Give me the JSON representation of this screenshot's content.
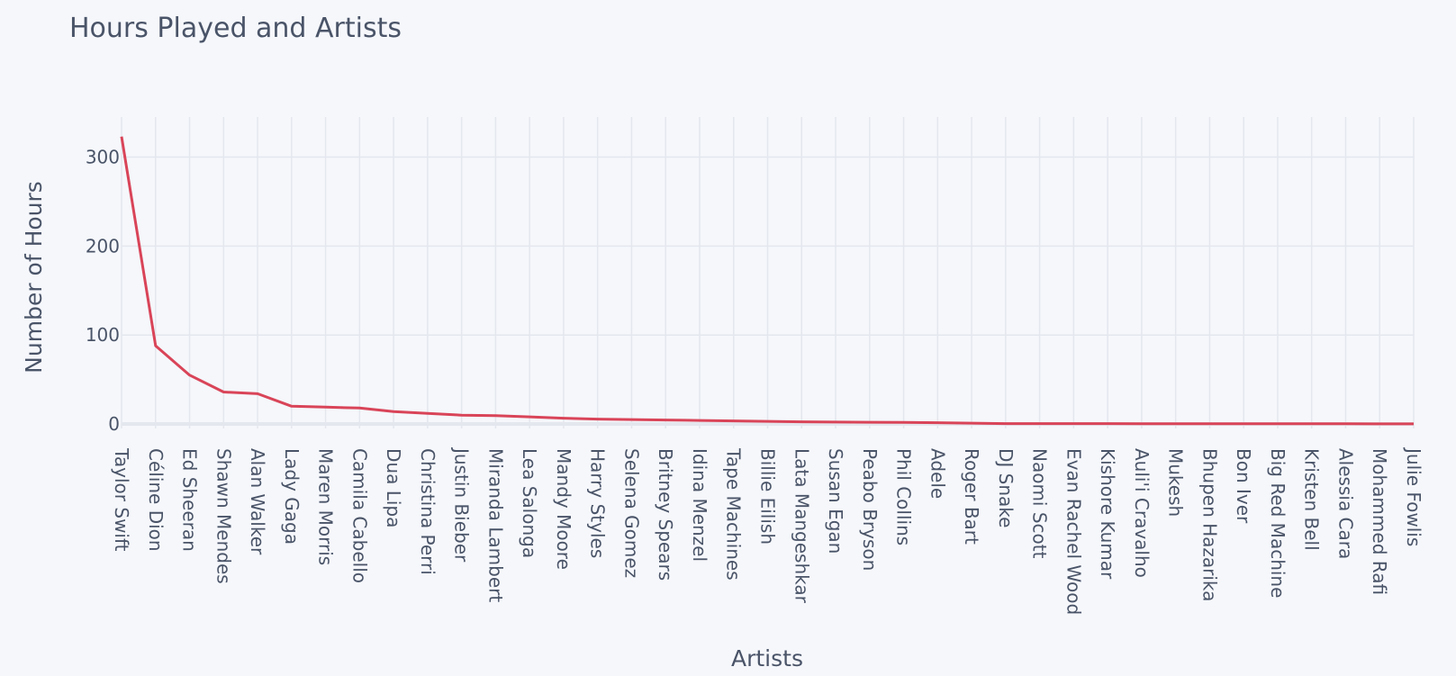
{
  "chart_data": {
    "type": "line",
    "title": "Hours Played and Artists",
    "xlabel": "Artists",
    "ylabel": "Number of Hours",
    "ylim": [
      -5,
      345
    ],
    "y_ticks": [
      0,
      100,
      200,
      300
    ],
    "grid": true,
    "line_color": "#d94458",
    "categories": [
      "Taylor Swift",
      "Céline Dion",
      "Ed Sheeran",
      "Shawn Mendes",
      "Alan Walker",
      "Lady Gaga",
      "Maren Morris",
      "Camila Cabello",
      "Dua Lipa",
      "Christina Perri",
      "Justin Bieber",
      "Miranda Lambert",
      "Lea Salonga",
      "Mandy Moore",
      "Harry Styles",
      "Selena Gomez",
      "Britney Spears",
      "Idina Menzel",
      "Tape Machines",
      "Billie Eilish",
      "Lata Mangeshkar",
      "Susan Egan",
      "Peabo Bryson",
      "Phil Collins",
      "Adele",
      "Roger Bart",
      "DJ Snake",
      "Naomi Scott",
      "Evan Rachel Wood",
      "Kishore Kumar",
      "Auli'i Cravalho",
      "Mukesh",
      "Bhupen Hazarika",
      "Bon Iver",
      "Big Red Machine",
      "Kristen Bell",
      "Alessia Cara",
      "Mohammed Rafi",
      "Julie Fowlis"
    ],
    "series": [
      {
        "values": [
          323,
          88,
          55,
          36,
          34,
          20,
          19,
          18,
          14,
          12,
          10,
          9.5,
          8,
          6.5,
          5.5,
          5,
          4.5,
          4,
          3.5,
          3,
          2.5,
          2.2,
          2,
          1.8,
          1.5,
          1,
          0.5,
          0.5,
          0.5,
          0.5,
          0.4,
          0.4,
          0.4,
          0.3,
          0.3,
          0.3,
          0.3,
          0.2,
          0.2
        ]
      }
    ]
  }
}
